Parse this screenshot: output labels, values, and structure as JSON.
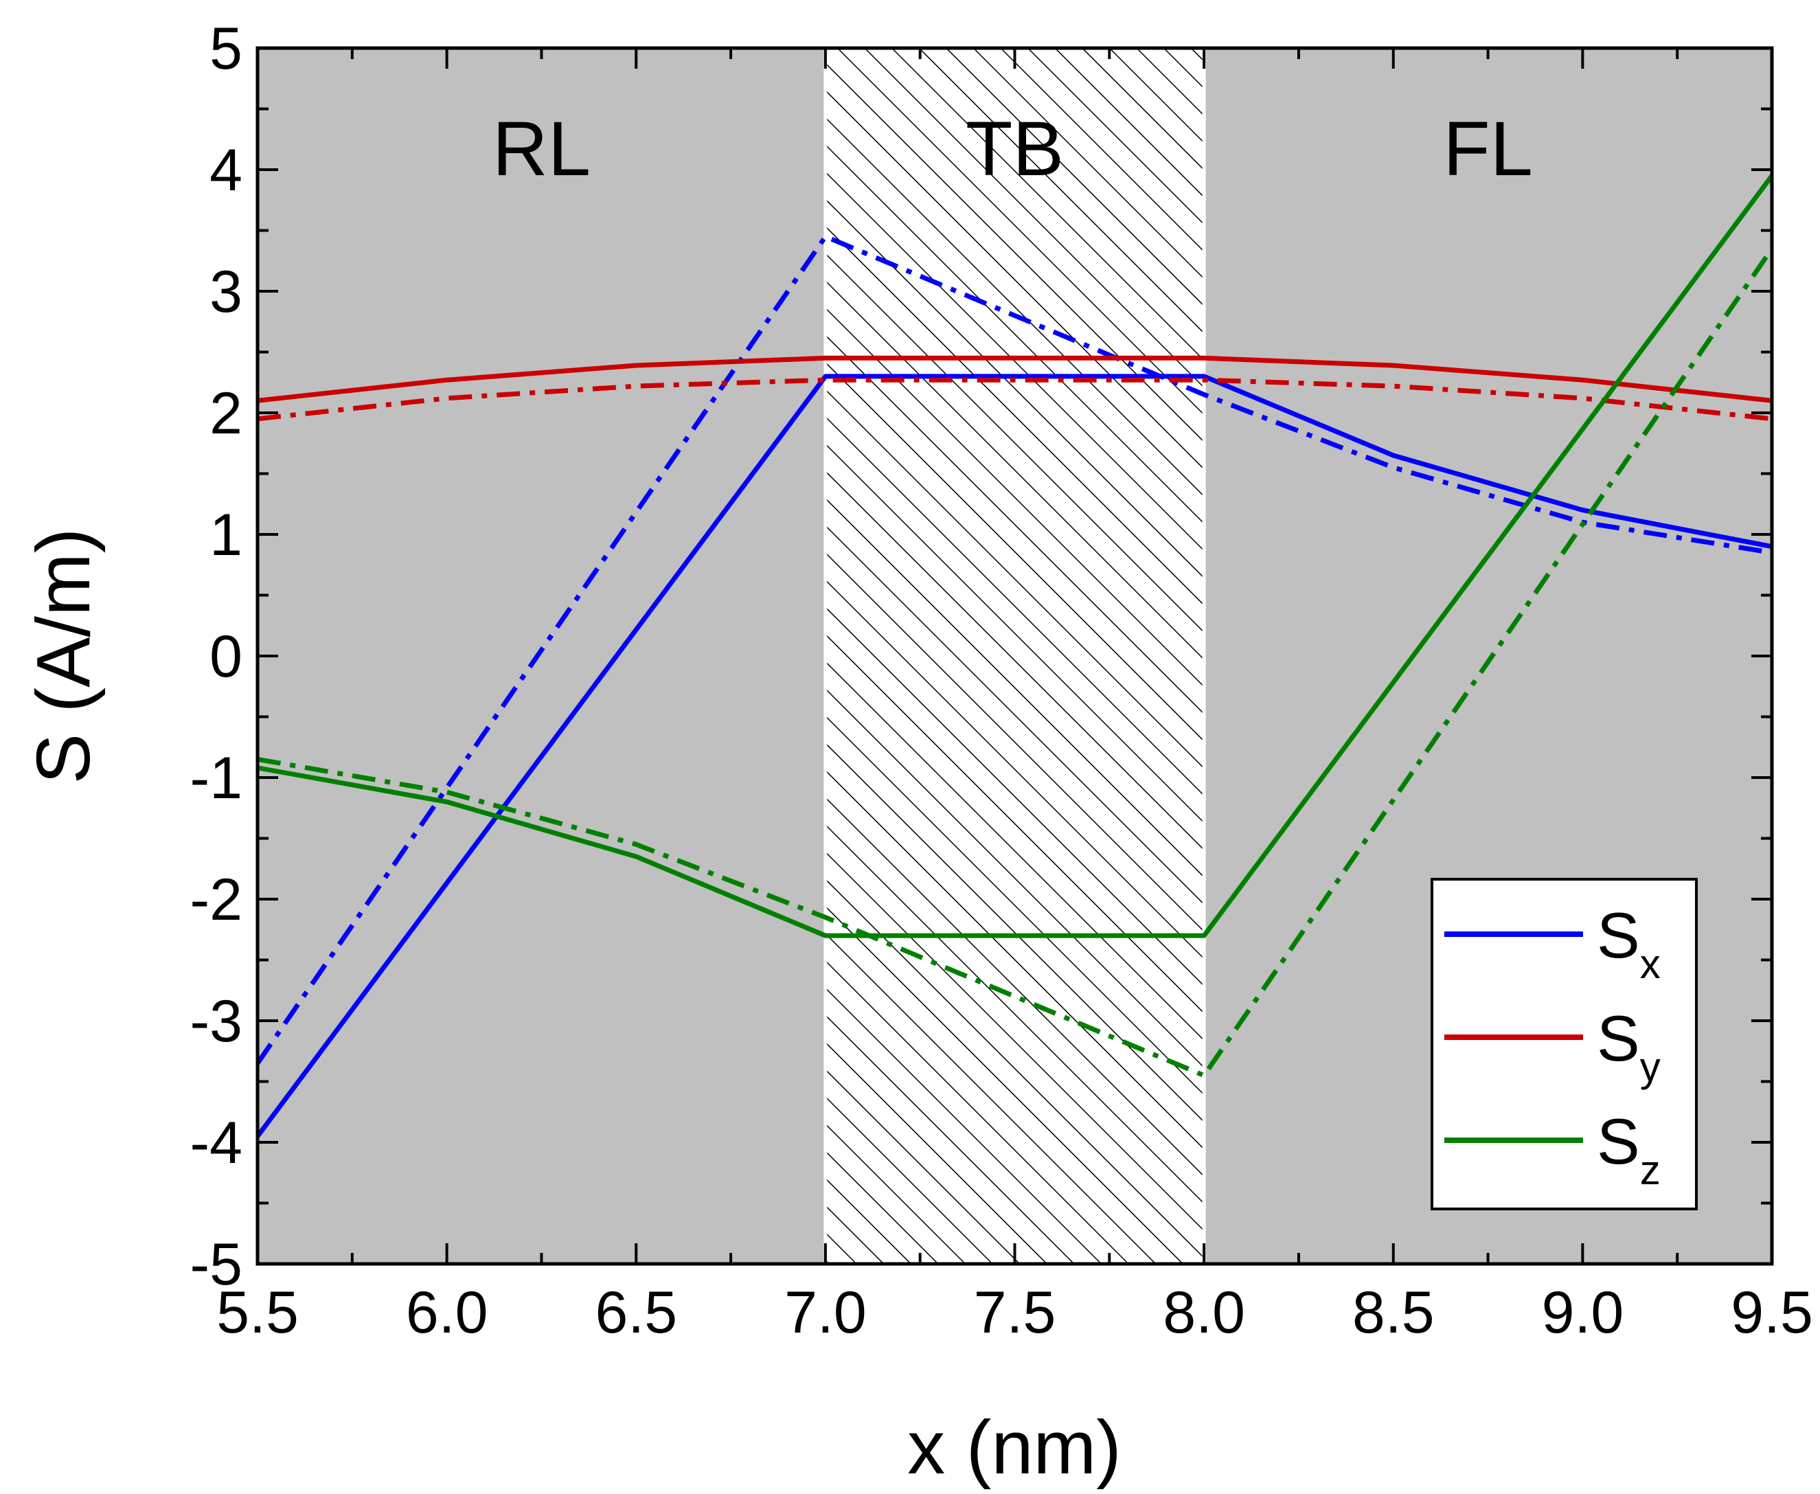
{
  "chart_data": {
    "type": "line",
    "xlabel": "x (nm)",
    "ylabel": "S (A/m)",
    "xlim": [
      5.5,
      9.5
    ],
    "ylim": [
      -5,
      5
    ],
    "xticks": [
      "5.5",
      "6.0",
      "6.5",
      "7.0",
      "7.5",
      "8.0",
      "8.5",
      "9.0",
      "9.5"
    ],
    "yticks": [
      "-5",
      "-4",
      "-3",
      "-2",
      "-1",
      "0",
      "1",
      "2",
      "3",
      "4",
      "5"
    ],
    "regions": [
      {
        "label": "RL",
        "x_range": [
          5.5,
          7.0
        ],
        "fill": "#c0c0c0"
      },
      {
        "label": "TB",
        "x_range": [
          7.0,
          8.0
        ],
        "fill": "hatched"
      },
      {
        "label": "FL",
        "x_range": [
          8.0,
          9.5
        ],
        "fill": "#c0c0c0"
      }
    ],
    "legend": {
      "position": "bottom-right",
      "entries": [
        {
          "base": "S",
          "sub": "x",
          "color": "#0000ff"
        },
        {
          "base": "S",
          "sub": "y",
          "color": "#cc0000"
        },
        {
          "base": "S",
          "sub": "z",
          "color": "#008000"
        }
      ]
    },
    "series": [
      {
        "name": "Sx solid",
        "color": "#0000ff",
        "style": "solid",
        "points": [
          [
            5.5,
            -3.95
          ],
          [
            7.0,
            2.3
          ],
          [
            8.0,
            2.3
          ],
          [
            8.5,
            1.65
          ],
          [
            9.0,
            1.2
          ],
          [
            9.5,
            0.9
          ]
        ]
      },
      {
        "name": "Sx dash-dot",
        "color": "#0000ff",
        "style": "dashdot",
        "points": [
          [
            5.5,
            -3.35
          ],
          [
            7.0,
            3.45
          ],
          [
            8.0,
            2.15
          ],
          [
            8.5,
            1.55
          ],
          [
            9.0,
            1.1
          ],
          [
            9.5,
            0.85
          ]
        ]
      },
      {
        "name": "Sy solid",
        "color": "#cc0000",
        "style": "solid",
        "points": [
          [
            5.5,
            2.1
          ],
          [
            6.0,
            2.27
          ],
          [
            6.5,
            2.39
          ],
          [
            7.0,
            2.45
          ],
          [
            8.0,
            2.45
          ],
          [
            8.5,
            2.39
          ],
          [
            9.0,
            2.27
          ],
          [
            9.5,
            2.1
          ]
        ]
      },
      {
        "name": "Sy dash-dot",
        "color": "#cc0000",
        "style": "dashdot",
        "points": [
          [
            5.5,
            1.95
          ],
          [
            6.0,
            2.12
          ],
          [
            6.5,
            2.22
          ],
          [
            7.0,
            2.27
          ],
          [
            8.0,
            2.27
          ],
          [
            8.5,
            2.22
          ],
          [
            9.0,
            2.12
          ],
          [
            9.5,
            1.95
          ]
        ]
      },
      {
        "name": "Sz solid",
        "color": "#008000",
        "style": "solid",
        "points": [
          [
            5.5,
            -0.92
          ],
          [
            6.0,
            -1.2
          ],
          [
            6.5,
            -1.65
          ],
          [
            7.0,
            -2.3
          ],
          [
            8.0,
            -2.3
          ],
          [
            9.5,
            3.95
          ]
        ]
      },
      {
        "name": "Sz dash-dot",
        "color": "#008000",
        "style": "dashdot",
        "points": [
          [
            5.5,
            -0.85
          ],
          [
            6.0,
            -1.12
          ],
          [
            6.5,
            -1.55
          ],
          [
            7.0,
            -2.15
          ],
          [
            8.0,
            -3.45
          ],
          [
            9.5,
            3.35
          ]
        ]
      }
    ]
  }
}
